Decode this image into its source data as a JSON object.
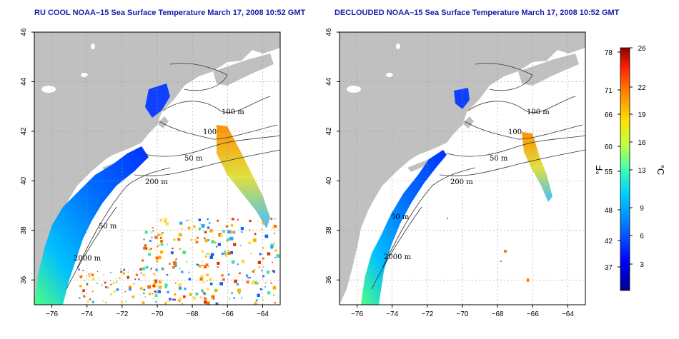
{
  "titles": {
    "left": "RU COOL NOAA–15 Sea Surface Temperature March 17, 2008 10:52 GMT",
    "right": "DECLOUDED NOAA–15 Sea Surface Temperature March 17, 2008 10:52 GMT"
  },
  "axes": {
    "lon_ticks": [
      "−76",
      "−74",
      "−72",
      "−70",
      "−68",
      "−66",
      "−64"
    ],
    "lat_ticks": [
      "36",
      "38",
      "40",
      "42",
      "44",
      "46"
    ],
    "lon_range": [
      -77,
      -63
    ],
    "lat_range": [
      35,
      46
    ]
  },
  "contours": {
    "left": [
      "100 m",
      "100",
      "50 m",
      "200 m",
      "50 m",
      "2000 m"
    ],
    "right": [
      "100 m",
      "100",
      "50 m",
      "200 m",
      "50 m",
      "2000 m"
    ]
  },
  "colorbar": {
    "fahrenheit_ticks": [
      "78",
      "71",
      "66",
      "60",
      "55",
      "48",
      "42",
      "37"
    ],
    "celsius_ticks": [
      "26",
      "22",
      "19",
      "16",
      "13",
      "9",
      "6",
      "3"
    ],
    "fahrenheit_unit": "°F",
    "celsius_unit": "°C",
    "colors": [
      "#00008b",
      "#0000ff",
      "#0080ff",
      "#00d0ff",
      "#40ffb0",
      "#c0ff40",
      "#ffe000",
      "#ff8000",
      "#ff2000",
      "#8b0000"
    ]
  },
  "colors": {
    "land": "#c0c0c0",
    "ocean": "#ffffff",
    "grid": "#9a9a9a",
    "title": "#1a1aa8"
  }
}
